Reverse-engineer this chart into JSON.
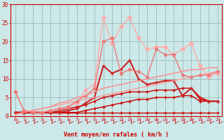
{
  "bg_color": "#cce8e8",
  "grid_color": "#99bbbb",
  "xlabel": "Vent moyen/en rafales ( km/h )",
  "xlabel_color": "#cc0000",
  "tick_color": "#cc0000",
  "axis_color": "#cc0000",
  "x_ticks": [
    0,
    1,
    2,
    3,
    4,
    5,
    6,
    7,
    8,
    9,
    10,
    11,
    12,
    13,
    14,
    15,
    16,
    17,
    18,
    19,
    20,
    21,
    22,
    23
  ],
  "y_ticks": [
    0,
    5,
    10,
    15,
    20,
    25,
    30
  ],
  "xlim": [
    -0.5,
    23.5
  ],
  "ylim": [
    0,
    30
  ],
  "lines": [
    {
      "x": [
        0,
        1,
        2,
        3,
        4,
        5,
        6,
        7,
        8,
        9,
        10,
        11,
        12,
        13,
        14,
        15,
        16,
        17,
        18,
        19,
        20,
        21,
        22,
        23
      ],
      "y": [
        1.0,
        1.0,
        1.0,
        1.0,
        1.0,
        1.0,
        1.0,
        1.0,
        1.0,
        1.0,
        1.0,
        1.0,
        1.0,
        1.0,
        1.0,
        1.0,
        1.0,
        1.0,
        1.0,
        1.0,
        1.0,
        1.0,
        1.0,
        1.0
      ],
      "color": "#cc0000",
      "lw": 1.0,
      "marker": "+",
      "ms": 3.0
    },
    {
      "x": [
        0,
        1,
        2,
        3,
        4,
        5,
        6,
        7,
        8,
        9,
        10,
        11,
        12,
        13,
        14,
        15,
        16,
        17,
        18,
        19,
        20,
        21,
        22,
        23
      ],
      "y": [
        1.0,
        1.0,
        1.0,
        1.0,
        1.0,
        1.0,
        1.0,
        1.0,
        1.5,
        2.0,
        2.5,
        3.0,
        3.5,
        4.0,
        4.5,
        4.5,
        5.0,
        5.0,
        5.0,
        5.5,
        5.5,
        4.0,
        4.0,
        4.0
      ],
      "color": "#cc0000",
      "lw": 1.0,
      "marker": "+",
      "ms": 3.0
    },
    {
      "x": [
        0,
        1,
        2,
        3,
        4,
        5,
        6,
        7,
        8,
        9,
        10,
        11,
        12,
        13,
        14,
        15,
        16,
        17,
        18,
        19,
        20,
        21,
        22,
        23
      ],
      "y": [
        1.0,
        1.0,
        1.0,
        1.0,
        1.0,
        1.5,
        2.0,
        2.5,
        3.0,
        4.0,
        5.0,
        5.5,
        6.0,
        6.5,
        6.5,
        6.5,
        7.0,
        7.0,
        7.0,
        7.5,
        7.5,
        4.5,
        4.0,
        4.0
      ],
      "color": "#cc0000",
      "lw": 1.0,
      "marker": "+",
      "ms": 3.0
    },
    {
      "x": [
        0,
        1,
        2,
        3,
        4,
        5,
        6,
        7,
        8,
        9,
        10,
        11,
        12,
        13,
        14,
        15,
        16,
        17,
        18,
        19,
        20,
        21,
        22,
        23
      ],
      "y": [
        1.0,
        1.0,
        1.0,
        1.0,
        1.0,
        1.0,
        1.5,
        2.0,
        3.5,
        5.0,
        13.5,
        11.5,
        12.5,
        15.0,
        10.0,
        8.5,
        9.0,
        9.5,
        9.5,
        5.5,
        7.5,
        5.0,
        4.0,
        4.0
      ],
      "color": "#cc2222",
      "lw": 1.5,
      "marker": "+",
      "ms": 3.5
    },
    {
      "x": [
        0,
        1,
        2,
        3,
        4,
        5,
        6,
        7,
        8,
        9,
        10,
        11,
        12,
        13,
        14,
        15,
        16,
        17,
        18,
        19,
        20,
        21,
        22,
        23
      ],
      "y": [
        0.5,
        1.0,
        1.5,
        2.0,
        2.5,
        3.0,
        3.5,
        4.0,
        4.5,
        5.0,
        5.5,
        6.0,
        6.5,
        7.0,
        7.5,
        8.0,
        8.5,
        9.0,
        9.5,
        10.0,
        10.5,
        11.0,
        11.5,
        12.0
      ],
      "color": "#ff9999",
      "lw": 1.0,
      "marker": null,
      "ms": 0
    },
    {
      "x": [
        0,
        1,
        2,
        3,
        4,
        5,
        6,
        7,
        8,
        9,
        10,
        11,
        12,
        13,
        14,
        15,
        16,
        17,
        18,
        19,
        20,
        21,
        22,
        23
      ],
      "y": [
        6.5,
        1.5,
        1.0,
        1.0,
        1.5,
        2.0,
        2.5,
        3.5,
        7.0,
        8.5,
        26.5,
        19.5,
        24.0,
        26.5,
        21.0,
        18.0,
        18.5,
        18.5,
        16.5,
        18.0,
        19.5,
        13.5,
        10.5,
        11.5
      ],
      "color": "#ffaaaa",
      "lw": 1.0,
      "marker": "*",
      "ms": 4.0
    },
    {
      "x": [
        0,
        1,
        2,
        3,
        4,
        5,
        6,
        7,
        8,
        9,
        10,
        11,
        12,
        13,
        14,
        15,
        16,
        17,
        18,
        19,
        20,
        21,
        22,
        23
      ],
      "y": [
        6.5,
        1.5,
        1.0,
        1.0,
        1.5,
        2.0,
        2.5,
        4.0,
        5.5,
        7.5,
        20.0,
        21.0,
        11.5,
        12.5,
        12.0,
        10.5,
        18.0,
        16.5,
        16.5,
        11.0,
        10.5,
        11.0,
        11.0,
        12.0
      ],
      "color": "#ee7777",
      "lw": 1.0,
      "marker": "*",
      "ms": 3.5
    },
    {
      "x": [
        0,
        1,
        2,
        3,
        4,
        5,
        6,
        7,
        8,
        9,
        10,
        11,
        12,
        13,
        14,
        15,
        16,
        17,
        18,
        19,
        20,
        21,
        22,
        23
      ],
      "y": [
        0.5,
        1.0,
        1.5,
        2.0,
        2.5,
        3.5,
        4.0,
        5.0,
        5.5,
        6.5,
        7.5,
        8.0,
        8.5,
        9.0,
        9.5,
        10.0,
        10.5,
        11.0,
        11.5,
        12.0,
        12.5,
        12.5,
        13.0,
        13.0
      ],
      "color": "#ff8888",
      "lw": 1.0,
      "marker": null,
      "ms": 0
    }
  ],
  "arrow_color": "#cc0000"
}
